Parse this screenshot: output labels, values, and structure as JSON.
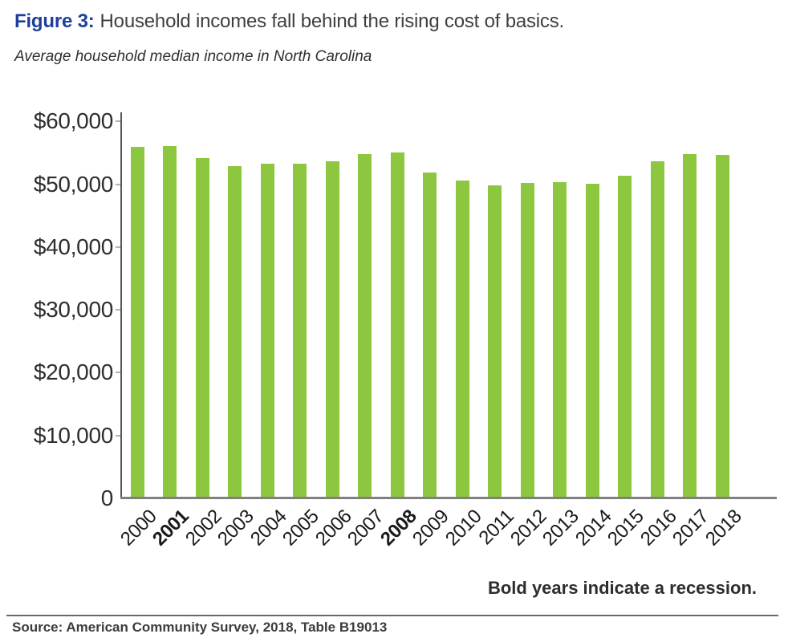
{
  "figure": {
    "label": "Figure 3:",
    "title": "Household incomes fall behind the rising cost of basics.",
    "subtitle": "Average household median income in North Carolina",
    "note": "Bold years indicate a recession.",
    "source": "Source: American Community Survey, 2018, Table B19013"
  },
  "colors": {
    "bar_green": "#8dc63f",
    "figure_label_blue": "#1e3f9a",
    "y_axis_dark": "#58595b",
    "baseline_gray": "#808080",
    "text_dark": "#2d2d2d"
  },
  "chart_data": {
    "type": "bar",
    "title": "Average household median income in North Carolina",
    "xlabel": "",
    "ylabel": "",
    "ylim": [
      0,
      60000
    ],
    "ytick_interval": 10000,
    "ytick_labels": [
      "0",
      "$10,000",
      "$20,000",
      "$30,000",
      "$40,000",
      "$50,000",
      "$60,000"
    ],
    "grid": false,
    "legend_position": "none",
    "categories": [
      "2000",
      "2001",
      "2002",
      "2003",
      "2004",
      "2005",
      "2006",
      "2007",
      "2008",
      "2009",
      "2010",
      "2011",
      "2012",
      "2013",
      "2014",
      "2015",
      "2016",
      "2017",
      "2018"
    ],
    "values": [
      56000,
      56100,
      54100,
      52900,
      53300,
      53200,
      53700,
      54800,
      55100,
      51800,
      50600,
      49800,
      50200,
      50300,
      50100,
      51300,
      53600,
      54800,
      54600
    ],
    "bold_categories": [
      "2001",
      "2008"
    ],
    "bold_note": "Bold years indicate a recession."
  }
}
